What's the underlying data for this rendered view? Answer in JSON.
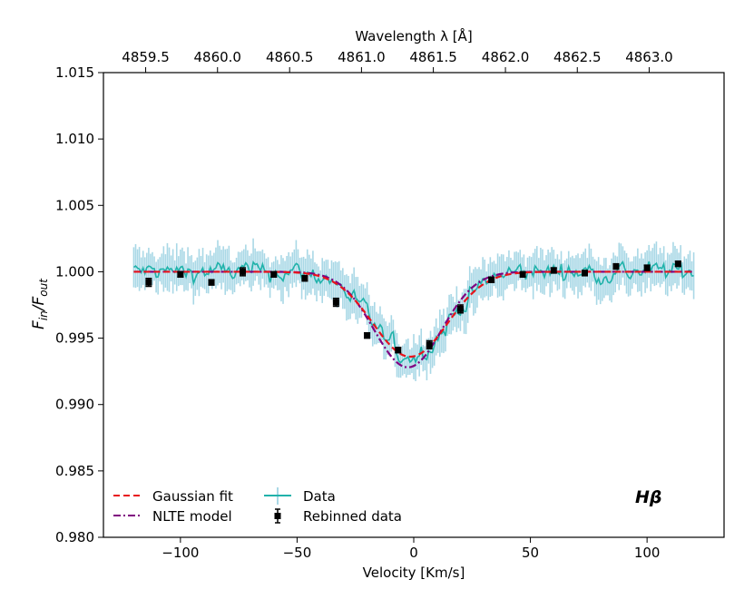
{
  "chart_data": {
    "type": "line",
    "title": "",
    "xlabel": "Velocity [Km/s]",
    "ylabel_main": "F",
    "ylabel_sub1": "in",
    "ylabel_sep": "/",
    "ylabel_sub2": "out",
    "top_xlabel": "Wavelength λ [Å]",
    "annotation": "Hβ",
    "xlim": [
      -133,
      133
    ],
    "ylim": [
      0.98,
      1.015
    ],
    "xticks": [
      -100,
      -50,
      0,
      50,
      100
    ],
    "xtick_labels": [
      "−100",
      "−50",
      "0",
      "50",
      "100"
    ],
    "yticks": [
      0.98,
      0.985,
      0.99,
      0.995,
      1.0,
      1.005,
      1.01,
      1.015
    ],
    "ytick_labels": [
      "0.980",
      "0.985",
      "0.990",
      "0.995",
      "1.000",
      "1.005",
      "1.010",
      "1.015"
    ],
    "top_ticks_velocity": [
      -114.9,
      -84.1,
      -53.2,
      -22.4,
      8.4,
      39.3,
      70.1,
      100.9
    ],
    "top_tick_labels": [
      "4859.5",
      "4860.0",
      "4860.5",
      "4861.0",
      "4861.5",
      "4862.0",
      "4862.5",
      "4863.0"
    ],
    "grid": false,
    "legend": {
      "position": "bottom-left",
      "entries": [
        "Gaussian fit",
        "NLTE model",
        "Data",
        "Rebinned data"
      ]
    },
    "gaussian_fit": {
      "name": "Gaussian fit",
      "color": "#e8141c",
      "style": "dashed",
      "center": -1.5,
      "depth": 0.0064,
      "sigma": 16
    },
    "nlte_model": {
      "name": "NLTE model",
      "color": "#800080",
      "style": "dashdot",
      "center": -2.5,
      "depth": 0.0072,
      "sigma": 14.5
    },
    "data_series": {
      "name": "Data",
      "color": "#20b2aa",
      "errcolor": "#a9d8e6",
      "v_range": [
        -120,
        120
      ],
      "step": 0.8,
      "center": -1.5,
      "depth": 0.0064,
      "sigma": 16,
      "noise": 0.0009,
      "err_low": 0.0009,
      "err_high": 0.0018
    },
    "rebinned": {
      "name": "Rebinned data",
      "color": "#000000",
      "x": [
        -113.6,
        -100.0,
        -86.7,
        -73.3,
        -60.0,
        -46.7,
        -33.3,
        -20.0,
        -6.7,
        6.7,
        20.0,
        33.3,
        46.7,
        60.0,
        73.3,
        86.7,
        100.0,
        113.3
      ],
      "y": [
        0.9992,
        0.9998,
        0.9992,
        1.0,
        0.9998,
        0.9995,
        0.9977,
        0.9952,
        0.9941,
        0.9945,
        0.9972,
        0.9994,
        0.9998,
        1.0001,
        0.9999,
        1.0004,
        1.0003,
        1.0006
      ],
      "err": [
        0.0003,
        0.0002,
        0.0002,
        0.0003,
        0.0002,
        0.0002,
        0.0003,
        0.0002,
        0.0002,
        0.0003,
        0.0003,
        0.0002,
        0.0002,
        0.0002,
        0.0002,
        0.0002,
        0.0002,
        0.0002
      ]
    }
  }
}
